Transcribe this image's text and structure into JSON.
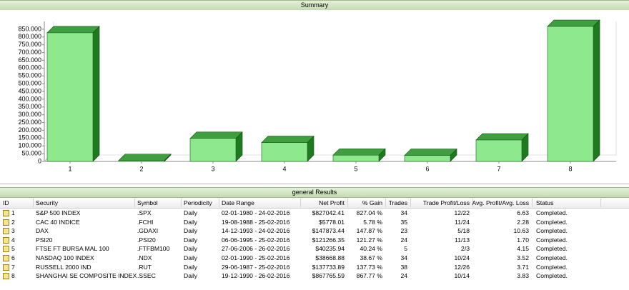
{
  "chart_data": {
    "type": "bar",
    "title": "Summary",
    "categories": [
      "1",
      "2",
      "3",
      "4",
      "5",
      "6",
      "7",
      "8"
    ],
    "values": [
      827042.41,
      5778.01,
      147873.44,
      121266.35,
      40235.94,
      38668.88,
      137733.89,
      867765.59
    ],
    "color": "#8ee98e",
    "side_color": "#1f7a1f",
    "top_color": "#3f9f3f",
    "ylim": [
      0,
      900000
    ],
    "yticks": [
      0,
      {
        "value": 50000,
        "label": "50.000"
      },
      {
        "value": 100000,
        "label": "100.000"
      },
      {
        "value": 150000,
        "label": "150.000"
      },
      {
        "value": 200000,
        "label": "200.000"
      },
      {
        "value": 250000,
        "label": "250.000"
      },
      {
        "value": 300000,
        "label": "300.000"
      },
      {
        "value": 350000,
        "label": "350.000"
      },
      {
        "value": 400000,
        "label": "400.000"
      },
      {
        "value": 450000,
        "label": "450.000"
      },
      {
        "value": 500000,
        "label": "500.000"
      },
      {
        "value": 550000,
        "label": "550.000"
      },
      {
        "value": 600000,
        "label": "600.000"
      },
      {
        "value": 650000,
        "label": "650.000"
      },
      {
        "value": 700000,
        "label": "700.000"
      },
      {
        "value": 750000,
        "label": "750.000"
      },
      {
        "value": 800000,
        "label": "800.000"
      },
      {
        "value": 850000,
        "label": "850.000"
      }
    ]
  },
  "table": {
    "title": "general Results",
    "columns": [
      "ID",
      "Security",
      "Symbol",
      "Periodicity",
      "Date Range",
      "Net Profit",
      "% Gain",
      "Trades",
      "Trade Profit/Loss",
      "Avg. Profit/Avg. Loss",
      "Status"
    ],
    "rows": [
      [
        "1",
        "S&P 500 INDEX",
        ".SPX",
        "Daily",
        "02-01-1980 - 24-02-2016",
        "$827042.41",
        "827.04 %",
        "34",
        "12/22",
        "6.63",
        "Completed."
      ],
      [
        "2",
        "CAC 40 INDICE",
        ".FCHI",
        "Daily",
        "19-08-1988 - 25-02-2016",
        "$5778.01",
        "5.78 %",
        "35",
        "11/24",
        "2.28",
        "Completed."
      ],
      [
        "3",
        "DAX",
        ".GDAXI",
        "Daily",
        "14-12-1993 - 24-02-2016",
        "$147873.44",
        "147.87 %",
        "23",
        "5/18",
        "10.63",
        "Completed."
      ],
      [
        "4",
        "PSI20",
        ".PSI20",
        "Daily",
        "06-06-1995 - 25-02-2016",
        "$121266.35",
        "121.27 %",
        "24",
        "11/13",
        "1.70",
        "Completed."
      ],
      [
        "5",
        "FTSE FT BURSA MAL 100",
        ".FTFBM100",
        "Daily",
        "27-06-2006 - 26-02-2016",
        "$40235.94",
        "40.24 %",
        "5",
        "2/3",
        "4.15",
        "Completed."
      ],
      [
        "6",
        "NASDAQ 100 INDEX",
        ".NDX",
        "Daily",
        "02-01-1990 - 25-02-2016",
        "$38668.88",
        "38.67 %",
        "34",
        "10/24",
        "3.52",
        "Completed."
      ],
      [
        "7",
        "RUSSELL 2000 IND",
        ".RUT",
        "Daily",
        "29-06-1987 - 25-02-2016",
        "$137733.89",
        "137.73 %",
        "38",
        "12/26",
        "3.71",
        "Completed."
      ],
      [
        "8",
        "SHANGHAI SE COMPOSITE INDEX",
        ".SSEC",
        "Daily",
        "19-12-1990 - 26-02-2016",
        "$867765.59",
        "867.77 %",
        "24",
        "10/14",
        "3.83",
        "Completed."
      ]
    ]
  }
}
